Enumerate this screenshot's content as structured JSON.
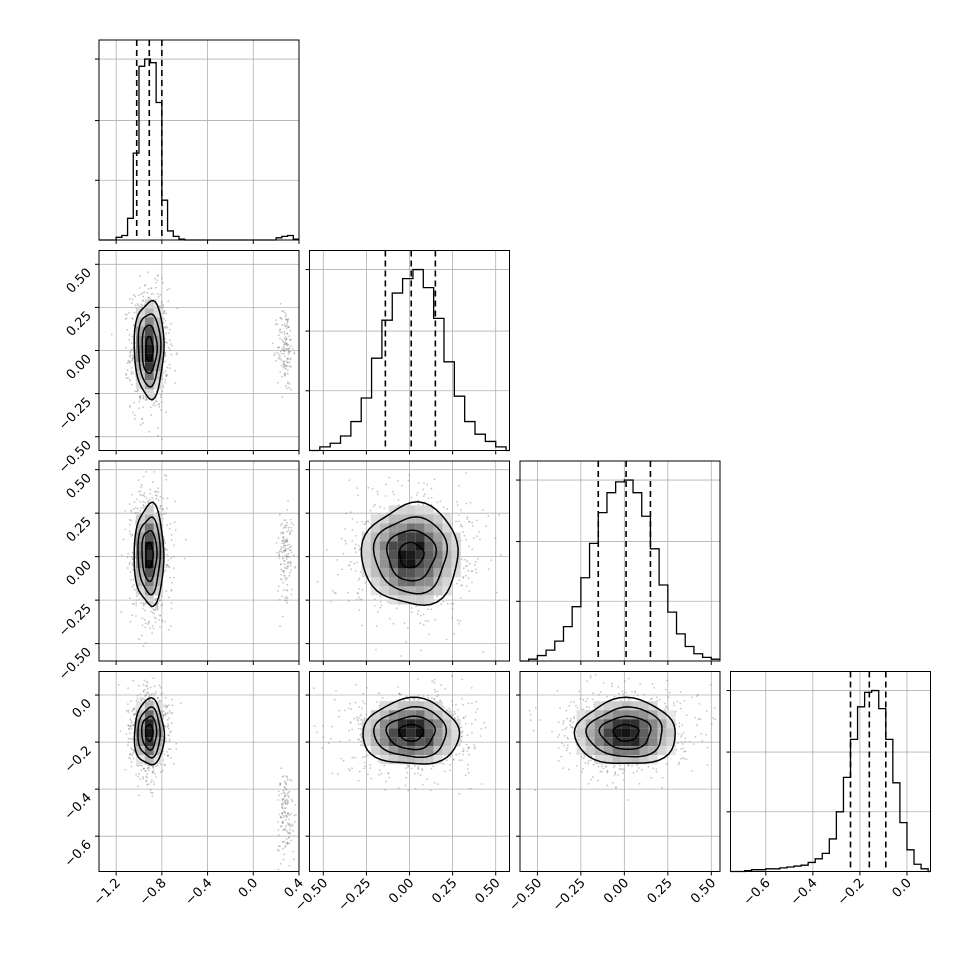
{
  "chart_data": {
    "type": "corner",
    "grid": true,
    "colors": {
      "line": "#000000",
      "grid": "#b0b0b0",
      "hist2d_dark": "#000000",
      "scatter": "#808080"
    },
    "params": [
      {
        "range": [
          -1.35,
          0.4
        ],
        "ticks": [
          -1.2,
          -0.8,
          -0.4,
          0.0,
          0.4
        ],
        "tick_labels": [
          "−1.2",
          "−0.8",
          "−0.4",
          "0.0",
          "0.4"
        ],
        "quantiles": [
          -1.02,
          -0.91,
          -0.8
        ],
        "mean": -0.91,
        "sd": 0.065,
        "hist": {
          "edges": [
            -1.35,
            -1.3,
            -1.25,
            -1.2,
            -1.15,
            -1.1,
            -1.05,
            -1.0,
            -0.95,
            -0.9,
            -0.85,
            -0.8,
            -0.75,
            -0.7,
            -0.65,
            -0.6,
            -0.55,
            -0.5,
            -0.45,
            -0.4,
            -0.35,
            -0.3,
            -0.25,
            -0.2,
            -0.15,
            -0.1,
            -0.05,
            0.0,
            0.05,
            0.1,
            0.15,
            0.2,
            0.25,
            0.3,
            0.35,
            0.4
          ],
          "counts": [
            0,
            0,
            0,
            0.015,
            0.025,
            0.12,
            0.48,
            0.96,
            1.0,
            0.98,
            0.76,
            0.22,
            0.05,
            0.02,
            0.005,
            0,
            0,
            0,
            0,
            0,
            0,
            0,
            0,
            0,
            0,
            0,
            0,
            0,
            0,
            0,
            0,
            0.012,
            0.02,
            0.025,
            0.005
          ]
        },
        "outlier_cluster": {
          "mean": 0.28,
          "sd": 0.035
        }
      },
      {
        "range": [
          -0.58,
          0.58
        ],
        "ticks": [
          -0.5,
          -0.25,
          0.0,
          0.25,
          0.5
        ],
        "tick_labels": [
          "−0.50",
          "−0.25",
          "0.00",
          "0.25",
          "0.50"
        ],
        "quantiles": [
          -0.14,
          0.01,
          0.15
        ],
        "mean": 0.01,
        "sd": 0.14,
        "hist": {
          "edges": [
            -0.58,
            -0.52,
            -0.46,
            -0.4,
            -0.34,
            -0.28,
            -0.22,
            -0.16,
            -0.1,
            -0.04,
            0.02,
            0.08,
            0.14,
            0.2,
            0.26,
            0.32,
            0.38,
            0.44,
            0.5,
            0.56,
            0.58
          ],
          "counts": [
            0.0,
            0.02,
            0.04,
            0.08,
            0.16,
            0.29,
            0.51,
            0.72,
            0.87,
            0.95,
            1.0,
            0.9,
            0.73,
            0.49,
            0.3,
            0.16,
            0.09,
            0.05,
            0.02,
            0.0
          ]
        }
      },
      {
        "range": [
          -0.6,
          0.55
        ],
        "ticks": [
          -0.5,
          -0.25,
          0.0,
          0.25,
          0.5
        ],
        "tick_labels": [
          "−0.50",
          "−0.25",
          "0.00",
          "0.25",
          "0.50"
        ],
        "quantiles": [
          -0.15,
          0.01,
          0.15
        ],
        "mean": 0.01,
        "sd": 0.145,
        "hist": {
          "edges": [
            -0.6,
            -0.55,
            -0.5,
            -0.45,
            -0.4,
            -0.35,
            -0.3,
            -0.25,
            -0.2,
            -0.15,
            -0.1,
            -0.05,
            0.0,
            0.05,
            0.1,
            0.15,
            0.2,
            0.25,
            0.3,
            0.35,
            0.4,
            0.45,
            0.5,
            0.55
          ],
          "counts": [
            0.0,
            0.01,
            0.03,
            0.06,
            0.11,
            0.19,
            0.3,
            0.46,
            0.65,
            0.82,
            0.93,
            0.99,
            1.0,
            0.93,
            0.8,
            0.62,
            0.42,
            0.27,
            0.15,
            0.08,
            0.04,
            0.02,
            0.01
          ]
        }
      },
      {
        "range": [
          -0.75,
          0.1
        ],
        "ticks": [
          -0.6,
          -0.4,
          -0.2,
          0.0
        ],
        "tick_labels": [
          "−0.6",
          "−0.4",
          "−0.2",
          "0.0"
        ],
        "quantiles": [
          -0.24,
          -0.16,
          -0.09
        ],
        "mean": -0.16,
        "sd": 0.07,
        "hist": {
          "edges": [
            -0.75,
            -0.72,
            -0.69,
            -0.66,
            -0.63,
            -0.6,
            -0.57,
            -0.54,
            -0.51,
            -0.48,
            -0.45,
            -0.42,
            -0.39,
            -0.36,
            -0.33,
            -0.3,
            -0.27,
            -0.24,
            -0.21,
            -0.18,
            -0.15,
            -0.12,
            -0.09,
            -0.06,
            -0.03,
            0.0,
            0.03,
            0.06,
            0.09,
            0.1
          ],
          "counts": [
            0.0,
            0.0,
            0.005,
            0.01,
            0.01,
            0.015,
            0.015,
            0.02,
            0.025,
            0.03,
            0.035,
            0.05,
            0.07,
            0.1,
            0.18,
            0.33,
            0.52,
            0.73,
            0.91,
            0.99,
            1.0,
            0.9,
            0.73,
            0.49,
            0.27,
            0.12,
            0.04,
            0.015,
            0.0
          ]
        }
      }
    ],
    "ylim_2d": [
      null,
      [
        -0.58,
        0.58
      ],
      [
        -0.6,
        0.55
      ],
      [
        -0.75,
        0.1
      ]
    ],
    "ytick_labels_2d": [
      null,
      [
        "−0.50",
        "−0.25",
        "0.00",
        "0.25",
        "0.50"
      ],
      [
        "−0.50",
        "−0.25",
        "0.00",
        "0.25",
        "0.50"
      ],
      [
        "−0.6",
        "−0.4",
        "−0.2",
        "0.0"
      ]
    ],
    "ytick_values_2d": [
      null,
      [
        -0.5,
        -0.25,
        0.0,
        0.25,
        0.5
      ],
      [
        -0.5,
        -0.25,
        0.0,
        0.25,
        0.5
      ],
      [
        -0.6,
        -0.4,
        -0.2,
        0.0
      ]
    ],
    "pairs": [
      {
        "row": 1,
        "col": 0,
        "cx": -0.91,
        "cy": 0.01,
        "sx": 0.065,
        "sy": 0.14,
        "contour_levels": [
          0.5,
          1.0,
          1.5,
          2.0
        ]
      },
      {
        "row": 2,
        "col": 0,
        "cx": -0.91,
        "cy": 0.01,
        "sx": 0.065,
        "sy": 0.145,
        "contour_levels": [
          0.5,
          1.0,
          1.5,
          2.0
        ]
      },
      {
        "row": 2,
        "col": 1,
        "cx": 0.01,
        "cy": 0.01,
        "sx": 0.14,
        "sy": 0.145,
        "contour_levels": [
          0.5,
          1.0,
          1.5,
          2.0
        ]
      },
      {
        "row": 3,
        "col": 0,
        "cx": -0.91,
        "cy": -0.16,
        "sx": 0.065,
        "sy": 0.07,
        "contour_levels": [
          0.5,
          1.0,
          1.5,
          2.0
        ]
      },
      {
        "row": 3,
        "col": 1,
        "cx": 0.01,
        "cy": -0.16,
        "sx": 0.14,
        "sy": 0.07,
        "contour_levels": [
          0.5,
          1.0,
          1.5,
          2.0
        ]
      },
      {
        "row": 3,
        "col": 2,
        "cx": 0.01,
        "cy": -0.16,
        "sx": 0.145,
        "sy": 0.07,
        "contour_levels": [
          0.5,
          1.0,
          1.5,
          2.0
        ]
      }
    ]
  }
}
